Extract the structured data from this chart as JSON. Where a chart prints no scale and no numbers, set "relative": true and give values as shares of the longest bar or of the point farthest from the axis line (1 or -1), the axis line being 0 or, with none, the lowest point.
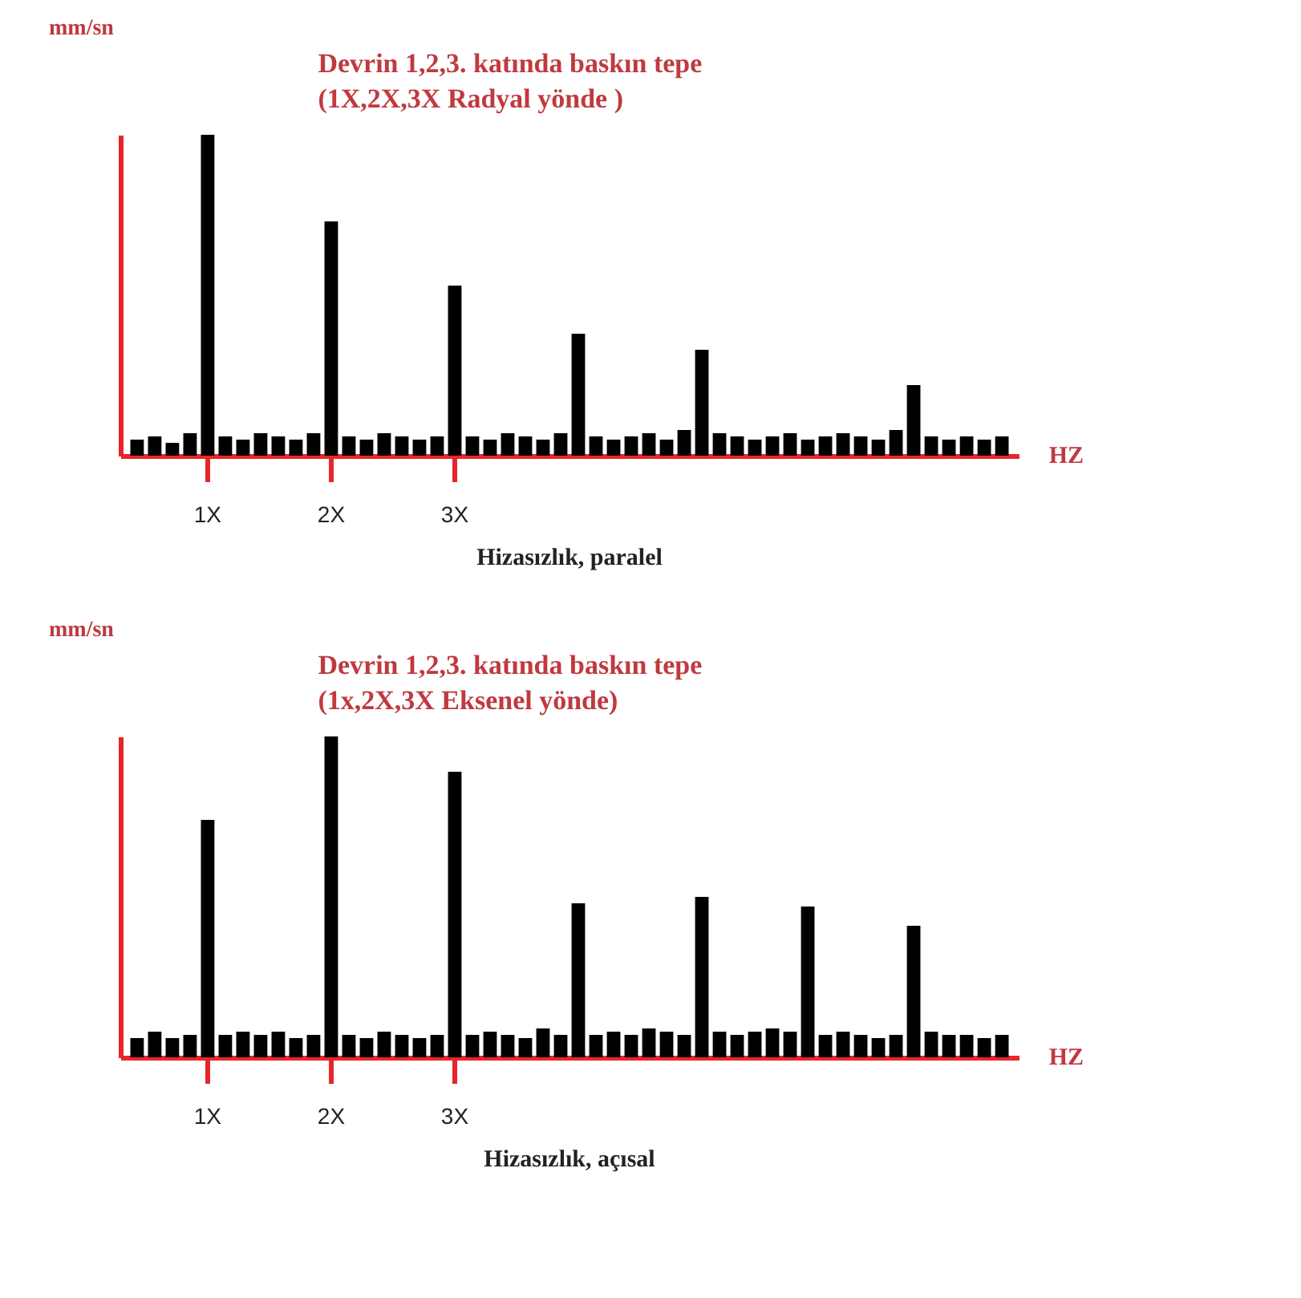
{
  "chart_data": [
    {
      "type": "bar",
      "relative": true,
      "title": "Hizasızlık, paralel",
      "ylabel": "mm/sn",
      "xlabel": "HZ",
      "grid": false,
      "tick_labels": "x",
      "annotations": [
        "Devrin 1,2,3. katında baskın tepe",
        "(1X,2X,3X Radyal yönde )"
      ],
      "categories": [
        null,
        null,
        null,
        null,
        "1X",
        null,
        null,
        null,
        null,
        null,
        null,
        "2X",
        null,
        null,
        null,
        null,
        null,
        null,
        "3X",
        null,
        null,
        null,
        null,
        null,
        null,
        null,
        null,
        null,
        null,
        null,
        null,
        null,
        null,
        null,
        null,
        null,
        null,
        null,
        null,
        null,
        null,
        null,
        null,
        null,
        null,
        null,
        null,
        null,
        null,
        null
      ],
      "series": [
        {
          "color": "#000000",
          "values": [
            0.05,
            0.06,
            0.04,
            0.07,
            1.0,
            0.06,
            0.05,
            0.07,
            0.06,
            0.05,
            0.07,
            0.73,
            0.06,
            0.05,
            0.07,
            0.06,
            0.05,
            0.06,
            0.53,
            0.06,
            0.05,
            0.07,
            0.06,
            0.05,
            0.07,
            0.38,
            0.06,
            0.05,
            0.06,
            0.07,
            0.05,
            0.08,
            0.33,
            0.07,
            0.06,
            0.05,
            0.06,
            0.07,
            0.05,
            0.06,
            0.07,
            0.06,
            0.05,
            0.08,
            0.22,
            0.06,
            0.05,
            0.06,
            0.05,
            0.06
          ]
        }
      ]
    },
    {
      "type": "bar",
      "relative": true,
      "title": "Hizasızlık, açısal",
      "ylabel": "mm/sn",
      "xlabel": "HZ",
      "grid": false,
      "tick_labels": "x",
      "annotations": [
        "Devrin 1,2,3. katında baskın tepe",
        "(1x,2X,3X Eksenel yönde)"
      ],
      "categories": [
        null,
        null,
        null,
        null,
        "1X",
        null,
        null,
        null,
        null,
        null,
        null,
        "2X",
        null,
        null,
        null,
        null,
        null,
        null,
        "3X",
        null,
        null,
        null,
        null,
        null,
        null,
        null,
        null,
        null,
        null,
        null,
        null,
        null,
        null,
        null,
        null,
        null,
        null,
        null,
        null,
        null,
        null,
        null,
        null,
        null,
        null,
        null,
        null,
        null,
        null,
        null
      ],
      "series": [
        {
          "color": "#000000",
          "values": [
            0.06,
            0.08,
            0.06,
            0.07,
            0.74,
            0.07,
            0.08,
            0.07,
            0.08,
            0.06,
            0.07,
            1.0,
            0.07,
            0.06,
            0.08,
            0.07,
            0.06,
            0.07,
            0.89,
            0.07,
            0.08,
            0.07,
            0.06,
            0.09,
            0.07,
            0.48,
            0.07,
            0.08,
            0.07,
            0.09,
            0.08,
            0.07,
            0.5,
            0.08,
            0.07,
            0.08,
            0.09,
            0.08,
            0.47,
            0.07,
            0.08,
            0.07,
            0.06,
            0.07,
            0.41,
            0.08,
            0.07,
            0.07,
            0.06,
            0.07
          ]
        }
      ]
    }
  ]
}
